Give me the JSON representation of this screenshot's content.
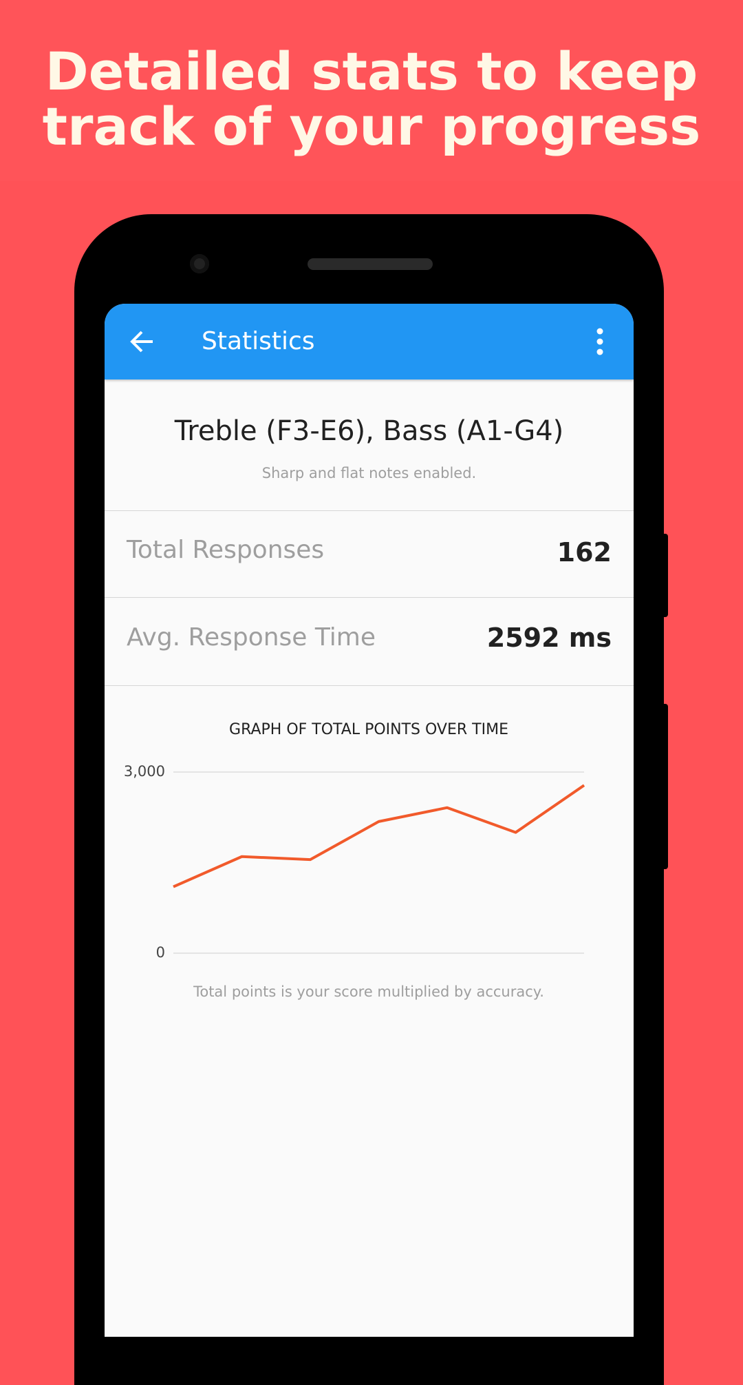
{
  "header": {
    "title": [
      "Detailed stats to keep",
      "track of your progress"
    ]
  },
  "app_bar": {
    "title": "Statistics"
  },
  "summary": {
    "heading": "Treble (F3-E6), Bass (A1-G4)",
    "subtitle": "Sharp and flat notes enabled."
  },
  "stats": [
    {
      "label": "Total Responses",
      "value": "162"
    },
    {
      "label": "Avg. Response Time",
      "value": "2592 ms"
    }
  ],
  "chart_data": {
    "type": "line",
    "title": "GRAPH OF TOTAL POINTS OVER TIME",
    "categories": [
      null,
      null,
      null,
      null,
      null,
      null,
      null
    ],
    "values": [
      1100,
      1600,
      1550,
      2180,
      2410,
      2000,
      2780
    ],
    "color": "#f15a2b",
    "ylim": [
      0,
      3000
    ],
    "yticks": [
      0,
      {
        "value": 3000,
        "label": "3,000"
      }
    ],
    "grid": true,
    "caption": "Total points is your score multiplied by accuracy."
  }
}
